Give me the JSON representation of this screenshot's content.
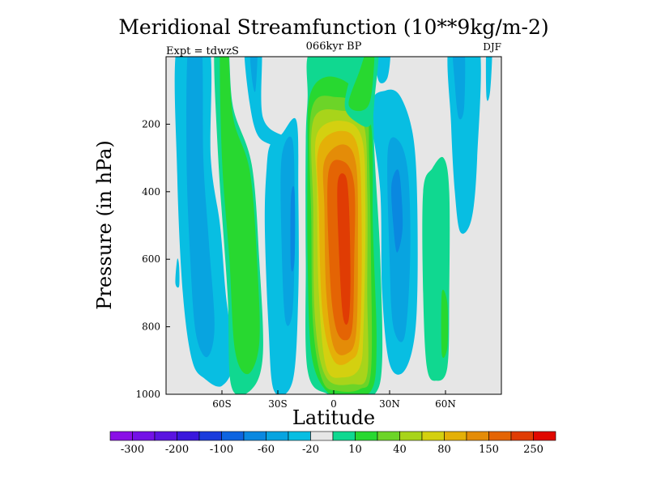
{
  "chart_data": {
    "type": "heatmap",
    "title": "Meridional Streamfunction (10**9kg/m-2)",
    "subtitle_center": "066kyr BP",
    "subtitle_left": "Expt = tdwzS",
    "subtitle_right": "DJF",
    "xlabel": "Latitude",
    "ylabel": "Pressure (in hPa)",
    "xlim": [
      -90,
      90
    ],
    "ylim": [
      1000,
      0
    ],
    "y_reversed": true,
    "x_ticks": [
      {
        "value": -60,
        "label": "60S"
      },
      {
        "value": -30,
        "label": "30S"
      },
      {
        "value": 0,
        "label": "0"
      },
      {
        "value": 30,
        "label": "30N"
      },
      {
        "value": 60,
        "label": "60N"
      }
    ],
    "y_ticks": [
      {
        "value": 200,
        "label": "200"
      },
      {
        "value": 400,
        "label": "400"
      },
      {
        "value": 600,
        "label": "600"
      },
      {
        "value": 800,
        "label": "800"
      },
      {
        "value": 1000,
        "label": "1000"
      }
    ],
    "background_color": "#e6e6e6",
    "colorbar": {
      "colors": [
        "#8a10e6",
        "#7412e6",
        "#5a14e0",
        "#3a18dc",
        "#1a3cdc",
        "#0e64e0",
        "#0a88e0",
        "#08a4e0",
        "#08bee2",
        "#e6e6e6",
        "#10d890",
        "#28d830",
        "#6cd428",
        "#a8d41a",
        "#d4d010",
        "#e4b008",
        "#e48c08",
        "#e46404",
        "#e03c04",
        "#e00800"
      ],
      "labels": [
        "-300",
        "-200",
        "-100",
        "-60",
        "-20",
        "10",
        "40",
        "80",
        "150",
        "250"
      ],
      "label_after_box": [
        0,
        2,
        4,
        6,
        8,
        10,
        12,
        14,
        16,
        18
      ]
    },
    "features": [
      {
        "name": "sh-outer-cell",
        "level": "-20",
        "lat_range": [
          -82,
          -55
        ],
        "pressure_range": [
          0,
          960
        ]
      },
      {
        "name": "sh-ferrel-cell",
        "level": "40",
        "lat_range": [
          -55,
          -40
        ],
        "pressure_range": [
          0,
          980
        ]
      },
      {
        "name": "sh-subtropical-negative",
        "level": "-20",
        "lat_range": [
          -32,
          -18
        ],
        "pressure_range": [
          150,
          1000
        ]
      },
      {
        "name": "hadley-cell",
        "level": "250",
        "lat_range": [
          -15,
          20
        ],
        "pressure_range": [
          0,
          1000
        ],
        "max_location": {
          "lat": 8,
          "pressure": 550
        }
      },
      {
        "name": "nh-negative-cell",
        "level": "-60",
        "lat_range": [
          28,
          42
        ],
        "pressure_range": [
          0,
          900
        ]
      },
      {
        "name": "nh-positive-cell",
        "level": "10",
        "lat_range": [
          52,
          60
        ],
        "pressure_range": [
          300,
          950
        ]
      },
      {
        "name": "nh-polar-negative",
        "level": "-20",
        "lat_range": [
          64,
          80
        ],
        "pressure_range": [
          0,
          550
        ]
      }
    ]
  }
}
